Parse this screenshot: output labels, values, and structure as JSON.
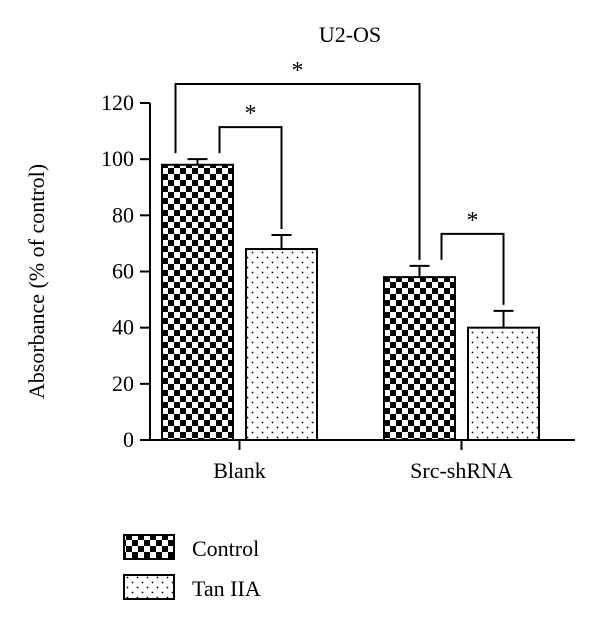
{
  "chart_data": {
    "type": "bar",
    "title": "U2-OS",
    "xlabel": "",
    "ylabel": "Absorbance (% of control)",
    "ylim": [
      0,
      120
    ],
    "yticks": [
      0,
      20,
      40,
      60,
      80,
      100,
      120
    ],
    "categories": [
      "Blank",
      "Src-shRNA"
    ],
    "series": [
      {
        "name": "Control",
        "values": [
          98,
          58
        ],
        "errors": [
          2,
          4
        ],
        "pattern": "checker"
      },
      {
        "name": "Tan IIA",
        "values": [
          68,
          40
        ],
        "errors": [
          5,
          6
        ],
        "pattern": "dots"
      }
    ],
    "annotations": [
      {
        "label": "*",
        "from": [
          0,
          0
        ],
        "to": [
          0,
          1
        ]
      },
      {
        "label": "*",
        "from": [
          1,
          0
        ],
        "to": [
          1,
          1
        ]
      },
      {
        "label": "*",
        "from": [
          0,
          0
        ],
        "to": [
          1,
          0
        ]
      }
    ],
    "grid": false,
    "legend_position": "bottom-left"
  }
}
